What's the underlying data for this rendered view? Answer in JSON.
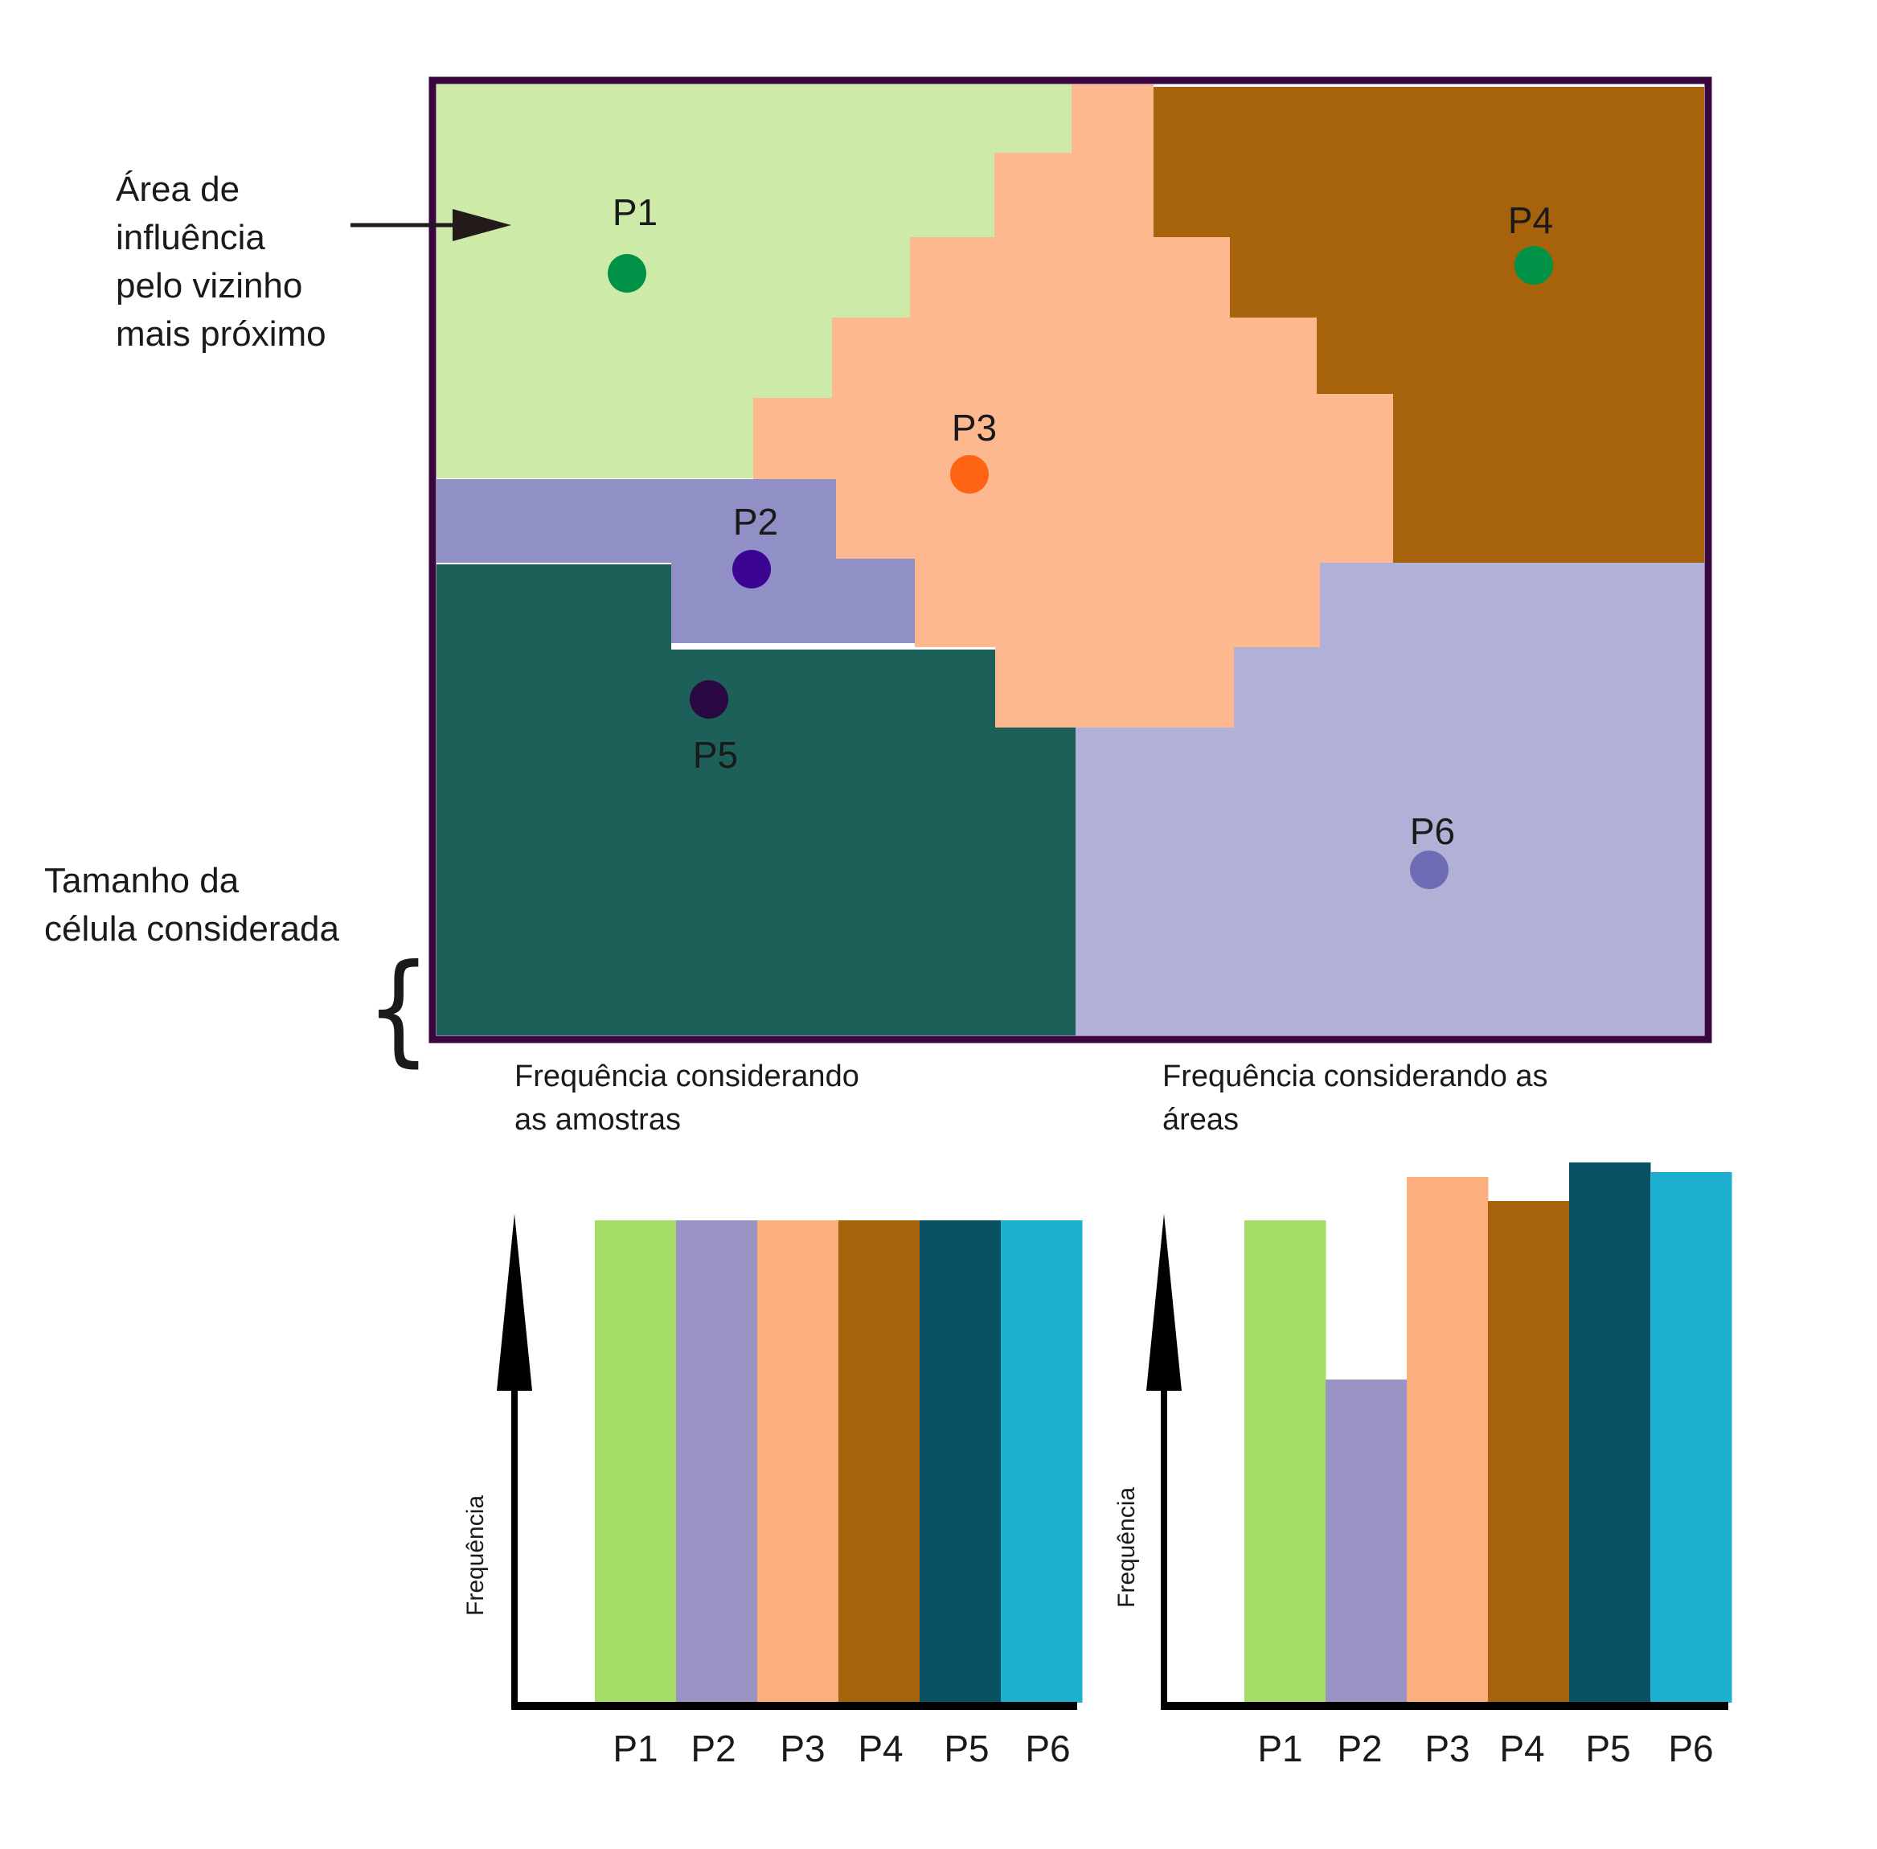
{
  "annotations": {
    "area_line1": "Área de",
    "area_line2": "influência",
    "area_line3": "pelo vizinho",
    "area_line4": "mais próximo",
    "cell_line1": "Tamanho da",
    "cell_line2": "célula considerada",
    "brace": "{"
  },
  "map": {
    "points": [
      {
        "label": "P1",
        "color": "#009348"
      },
      {
        "label": "P2",
        "color": "#3b0493"
      },
      {
        "label": "P3",
        "color": "#ff6314"
      },
      {
        "label": "P4",
        "color": "#009348"
      },
      {
        "label": "P5",
        "color": "#2a0842"
      },
      {
        "label": "P6",
        "color": "#6f6bb5"
      }
    ],
    "region_colors": {
      "P1": "#cdeaa8",
      "P2": "#9190c6",
      "P3": "#feb890",
      "P4": "#a7620c",
      "P5": "#1d6059",
      "P6": "#b1b1d8"
    },
    "border_color": "#3a0640"
  },
  "chart_data": [
    {
      "type": "bar",
      "title_line1": "Frequência considerando",
      "title_line2": "as amostras",
      "ylabel": "Frequência",
      "xlabel": "",
      "categories": [
        "P1",
        "P2",
        "P3",
        "P4",
        "P5",
        "P6"
      ],
      "values": [
        1,
        1,
        1,
        1,
        1,
        1
      ],
      "ylim": [
        0,
        1.1
      ],
      "colors": [
        "#a6dd69",
        "#9a94c5",
        "#faaf7c",
        "#a7620c",
        "#075162",
        "#1dafd0"
      ]
    },
    {
      "type": "bar",
      "title_line1": "Frequência considerando as",
      "title_line2": "áreas",
      "ylabel": "Frequência",
      "xlabel": "",
      "categories": [
        "P1",
        "P2",
        "P3",
        "P4",
        "P5",
        "P6"
      ],
      "values": [
        1.0,
        0.67,
        1.09,
        1.04,
        1.12,
        1.1
      ],
      "ylim": [
        0,
        1.1
      ],
      "colors": [
        "#a6dd69",
        "#9a94c5",
        "#faaf7c",
        "#a7620c",
        "#075162",
        "#1dafd0"
      ]
    }
  ]
}
